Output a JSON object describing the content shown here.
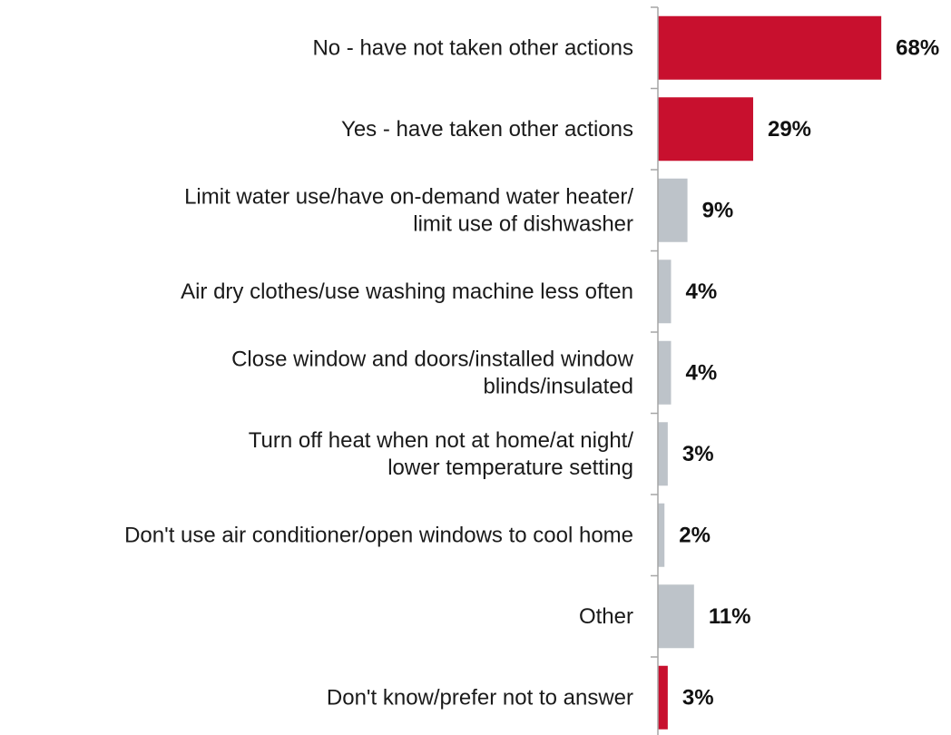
{
  "colors": {
    "highlight": "#C8102E",
    "neutral": "#BDC3C9",
    "axis": "#A6A6A6"
  },
  "chart_data": {
    "type": "bar",
    "orientation": "horizontal",
    "title": "",
    "xlabel": "",
    "ylabel": "",
    "xlim": [
      0,
      100
    ],
    "grid": false,
    "legend": "none",
    "categories": [
      [
        "No - have not taken other actions"
      ],
      [
        "Yes - have taken other actions"
      ],
      [
        "Limit water use/have on-demand water heater/",
        "limit use of dishwasher"
      ],
      [
        "Air dry clothes/use washing machine less often"
      ],
      [
        "Close window and doors/installed window",
        "blinds/insulated"
      ],
      [
        "Turn off heat when not at home/at night/",
        "lower temperature setting"
      ],
      [
        "Don't use air conditioner/open windows to cool home"
      ],
      [
        "Other"
      ],
      [
        "Don't know/prefer not to answer"
      ]
    ],
    "values": [
      68,
      29,
      9,
      4,
      4,
      3,
      2,
      11,
      3
    ],
    "value_labels": [
      "68%",
      "29%",
      "9%",
      "4%",
      "4%",
      "3%",
      "2%",
      "11%",
      "3%"
    ],
    "bar_colors": [
      "highlight",
      "highlight",
      "neutral",
      "neutral",
      "neutral",
      "neutral",
      "neutral",
      "neutral",
      "highlight"
    ]
  }
}
